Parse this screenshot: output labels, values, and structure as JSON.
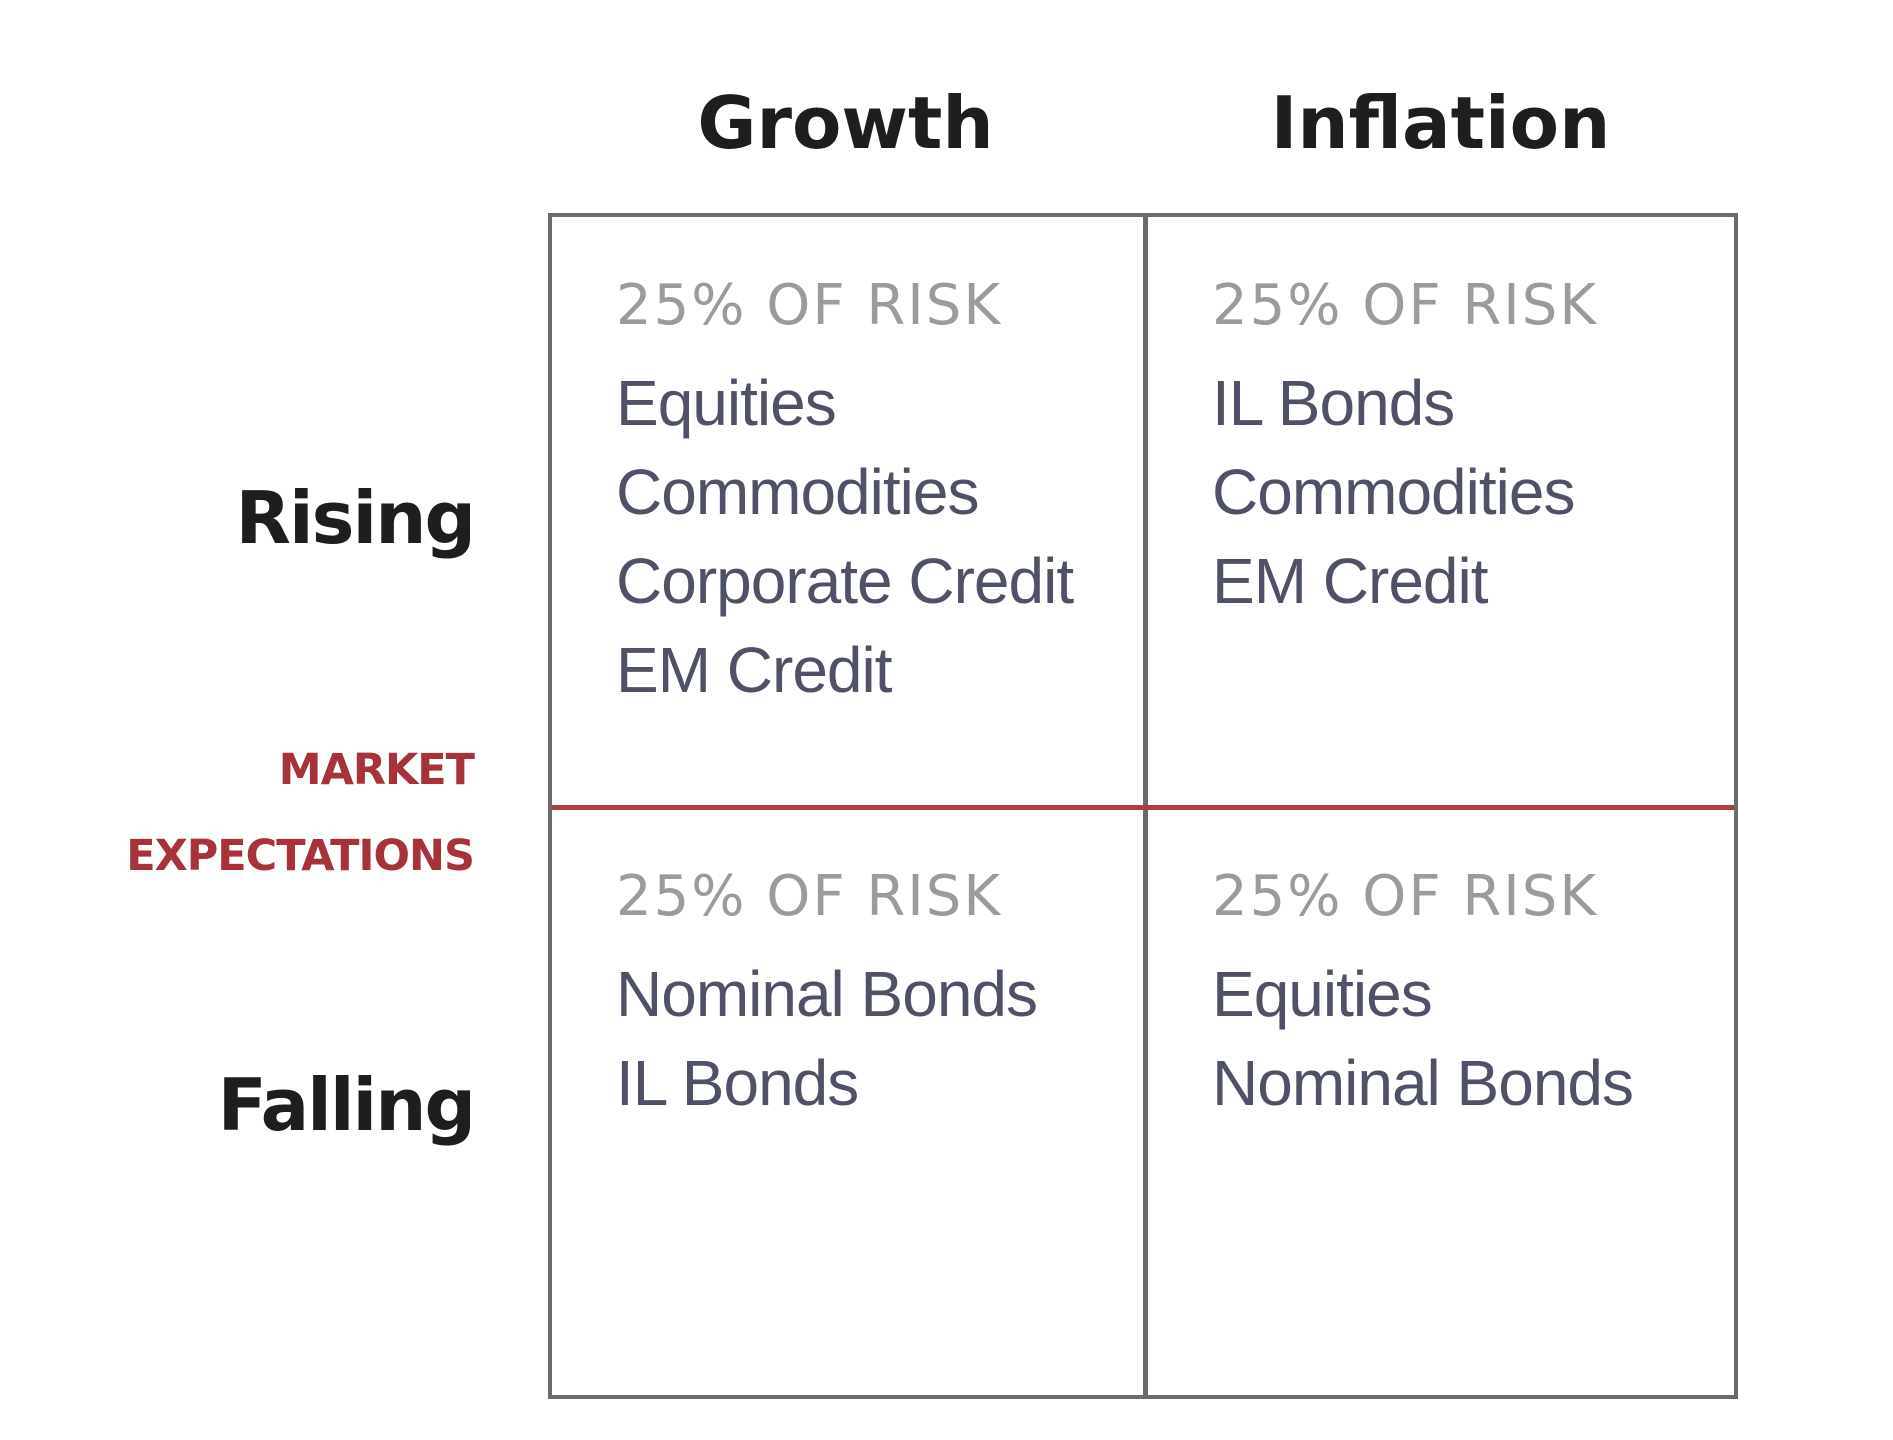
{
  "columns": {
    "growth": "Growth",
    "inflation": "Inflation"
  },
  "rows": {
    "rising": "Rising",
    "falling": "Falling"
  },
  "axis_label": {
    "line1": "MARKET",
    "line2": "EXPECTATIONS"
  },
  "cells": {
    "rising_growth": {
      "risk": "25% OF RISK",
      "assets": [
        "Equities",
        "Commodities",
        "Corporate Credit",
        "EM Credit"
      ]
    },
    "rising_inflation": {
      "risk": "25% OF RISK",
      "assets": [
        "IL Bonds",
        "Commodities",
        "EM Credit"
      ]
    },
    "falling_growth": {
      "risk": "25% OF RISK",
      "assets": [
        "Nominal Bonds",
        "IL Bonds"
      ]
    },
    "falling_inflation": {
      "risk": "25% OF RISK",
      "assets": [
        "Equities",
        "Nominal Bonds"
      ]
    }
  },
  "colors": {
    "header_text": "#1e1e1e",
    "risk_text": "#9b9b9b",
    "asset_text": "#4f5266",
    "accent_red": "#b23a44",
    "grid_border": "#6b6b6b"
  }
}
